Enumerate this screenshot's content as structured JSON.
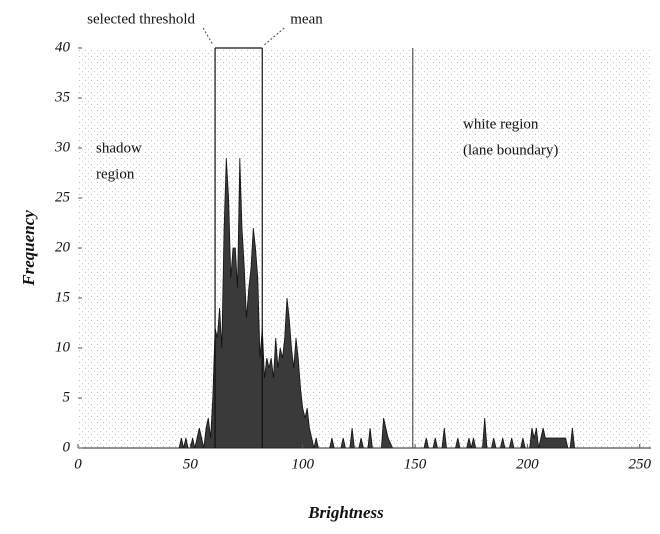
{
  "chart_data": {
    "type": "area",
    "xlabel": "Brightness",
    "ylabel": "Frequency",
    "xlim": [
      0,
      255
    ],
    "ylim": [
      0,
      40
    ],
    "xticks": [
      0,
      50,
      100,
      150,
      200,
      250
    ],
    "yticks": [
      0,
      5,
      10,
      15,
      20,
      25,
      30,
      35,
      40
    ],
    "color": "#3a3a3a",
    "x": [
      44,
      45,
      46,
      47,
      48,
      49,
      50,
      51,
      52,
      53,
      54,
      55,
      56,
      57,
      58,
      59,
      60,
      61,
      62,
      63,
      64,
      65,
      66,
      67,
      68,
      69,
      70,
      71,
      72,
      73,
      74,
      75,
      76,
      77,
      78,
      79,
      80,
      81,
      82,
      83,
      84,
      85,
      86,
      87,
      88,
      89,
      90,
      91,
      92,
      93,
      94,
      95,
      96,
      97,
      98,
      99,
      100,
      101,
      102,
      103,
      104,
      105,
      106,
      107,
      108,
      109,
      112,
      113,
      114,
      117,
      118,
      119,
      121,
      122,
      123,
      125,
      126,
      127,
      129,
      130,
      131,
      135,
      136,
      138,
      140,
      154,
      155,
      156,
      158,
      159,
      160,
      162,
      163,
      164,
      168,
      169,
      170,
      173,
      174,
      175,
      176,
      177,
      180,
      181,
      182,
      184,
      185,
      186,
      188,
      189,
      190,
      192,
      193,
      194,
      197,
      198,
      199,
      201,
      202,
      203,
      204,
      205,
      206,
      207,
      208,
      210,
      212,
      214,
      216,
      217,
      218,
      219,
      220,
      221
    ],
    "values": [
      0,
      0,
      1,
      0,
      1,
      0,
      0,
      1,
      0,
      1,
      2,
      1,
      0,
      2,
      3,
      1,
      5,
      12,
      11,
      14,
      10,
      22,
      29,
      25,
      17,
      20,
      20,
      16,
      29,
      22,
      18,
      13,
      16,
      18,
      22,
      20,
      17,
      9,
      12,
      7,
      9,
      8,
      9,
      7,
      11,
      8,
      10,
      9,
      11,
      15,
      13,
      10,
      8,
      11,
      9,
      6,
      4,
      3,
      4,
      2,
      1,
      0,
      1,
      0,
      0,
      0,
      0,
      1,
      0,
      0,
      1,
      0,
      0,
      2,
      0,
      0,
      1,
      0,
      0,
      2,
      0,
      0,
      3,
      1,
      0,
      0,
      1,
      0,
      0,
      1,
      0,
      0,
      2,
      0,
      0,
      1,
      0,
      0,
      1,
      0,
      1,
      0,
      0,
      3,
      0,
      0,
      1,
      0,
      0,
      1,
      0,
      0,
      1,
      0,
      0,
      1,
      0,
      0,
      2,
      1,
      2,
      0,
      1,
      2,
      1,
      1,
      1,
      1,
      1,
      1,
      0,
      0,
      2,
      0
    ],
    "threshold": {
      "label": "selected threshold",
      "x": 61
    },
    "mean": {
      "label": "mean",
      "x": 82
    },
    "boundary_x": 149,
    "shadow_label": [
      "shadow",
      "region"
    ],
    "white_label": [
      "white region",
      "(lane boundary)"
    ]
  }
}
